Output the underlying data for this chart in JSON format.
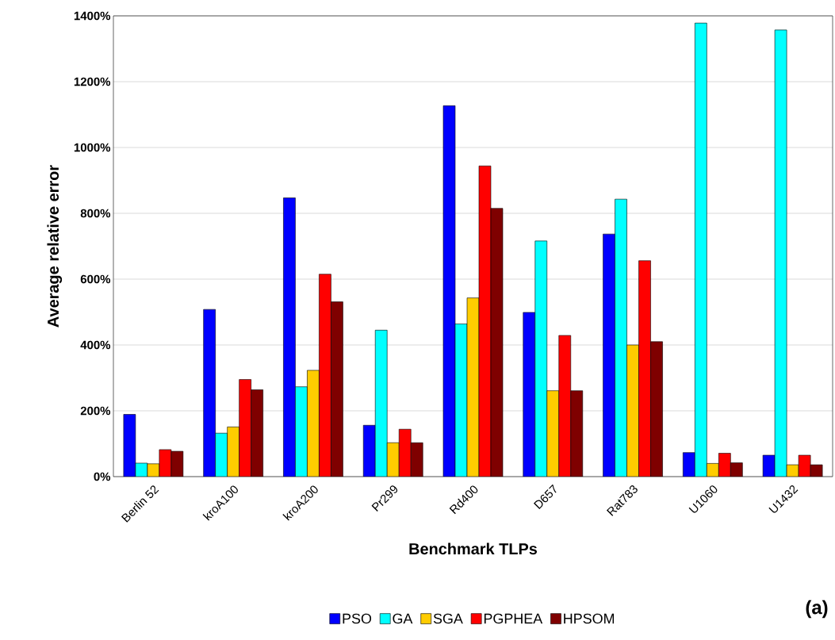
{
  "chart_data": {
    "type": "bar",
    "xlabel": "Benchmark TLPs",
    "ylabel": "Average relative  error",
    "categories": [
      "Berlin 52",
      "kroA100",
      "kroA200",
      "Pr299",
      "Rd400",
      "D657",
      "Rat783",
      "U1060",
      "U1432"
    ],
    "series": [
      {
        "name": "PSO",
        "color": "#0000ff",
        "values": [
          189,
          508,
          847,
          156,
          1127,
          499,
          737,
          73,
          65
        ]
      },
      {
        "name": "GA",
        "color": "#00ffff",
        "values": [
          41,
          132,
          273,
          445,
          464,
          716,
          843,
          1378,
          1357
        ]
      },
      {
        "name": "SGA",
        "color": "#ffcc00",
        "values": [
          39,
          151,
          323,
          103,
          543,
          261,
          400,
          40,
          36
        ]
      },
      {
        "name": "PGPHEA",
        "color": "#ff0000",
        "values": [
          82,
          295,
          615,
          144,
          944,
          429,
          656,
          71,
          65
        ]
      },
      {
        "name": "HPSOM",
        "color": "#7f0000",
        "values": [
          77,
          264,
          531,
          103,
          815,
          261,
          410,
          42,
          36
        ]
      }
    ],
    "ylim": [
      0,
      1400
    ],
    "yticks": [
      {
        "value": 0,
        "label": "0%"
      },
      {
        "value": 200,
        "label": "200%"
      },
      {
        "value": 400,
        "label": "400%"
      },
      {
        "value": 600,
        "label": "600%"
      },
      {
        "value": 800,
        "label": "800%"
      },
      {
        "value": 1000,
        "label": "1000%"
      },
      {
        "value": 1200,
        "label": "1200%"
      },
      {
        "value": 1400,
        "label": "1400%"
      }
    ],
    "grid": "y",
    "legend": "bottom",
    "annotations": [
      "(a)"
    ]
  }
}
